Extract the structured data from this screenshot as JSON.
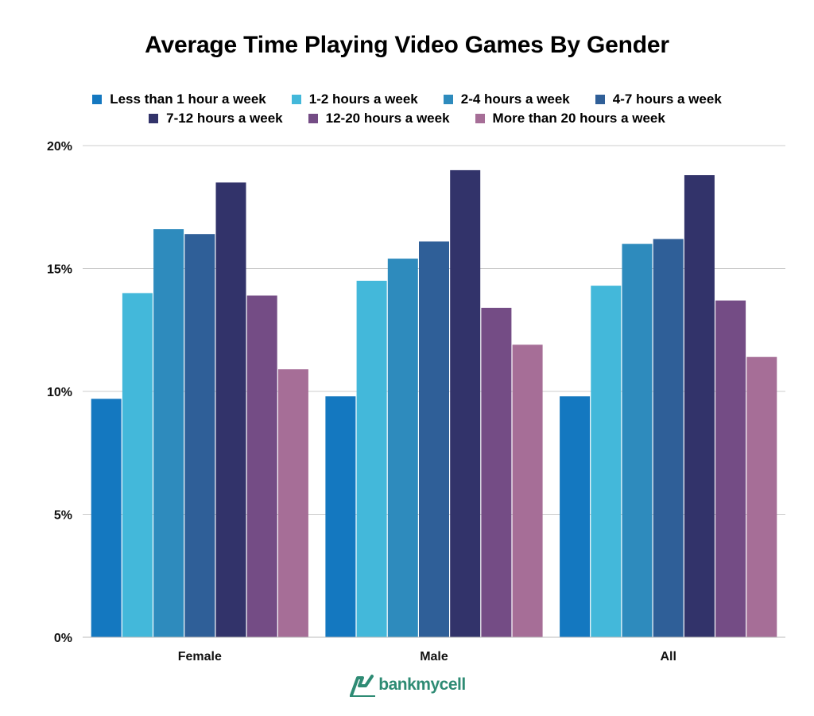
{
  "chart_data": {
    "type": "bar",
    "title": "Average Time Playing Video Games By Gender",
    "categories": [
      "Female",
      "Male",
      "All"
    ],
    "series": [
      {
        "name": "Less than 1 hour a week",
        "color": "#1478c0",
        "values": [
          9.7,
          9.8,
          9.8
        ]
      },
      {
        "name": "1-2 hours a week",
        "color": "#43b8da",
        "values": [
          14.0,
          14.5,
          14.3
        ]
      },
      {
        "name": "2-4 hours a week",
        "color": "#2e8bbd",
        "values": [
          16.6,
          15.4,
          16.0
        ]
      },
      {
        "name": "4-7 hours a week",
        "color": "#2f5f98",
        "values": [
          16.4,
          16.1,
          16.2
        ]
      },
      {
        "name": "7-12 hours a week",
        "color": "#32336a",
        "values": [
          18.5,
          19.0,
          18.8
        ]
      },
      {
        "name": "12-20 hours a week",
        "color": "#744c85",
        "values": [
          13.9,
          13.4,
          13.7
        ]
      },
      {
        "name": "More than 20 hours a week",
        "color": "#a66e97",
        "values": [
          10.9,
          11.9,
          11.4
        ]
      }
    ],
    "y_ticks": [
      "0%",
      "5%",
      "10%",
      "15%",
      "20%"
    ],
    "y_tick_values": [
      0,
      5,
      10,
      15,
      20
    ],
    "ylim": [
      0,
      20
    ],
    "xlabel": "",
    "ylabel": "",
    "grid": true,
    "legend_position": "top"
  },
  "logo": {
    "text": "bankmycell",
    "icon": "bankmycell-logo-icon",
    "color": "#2e8b74"
  }
}
